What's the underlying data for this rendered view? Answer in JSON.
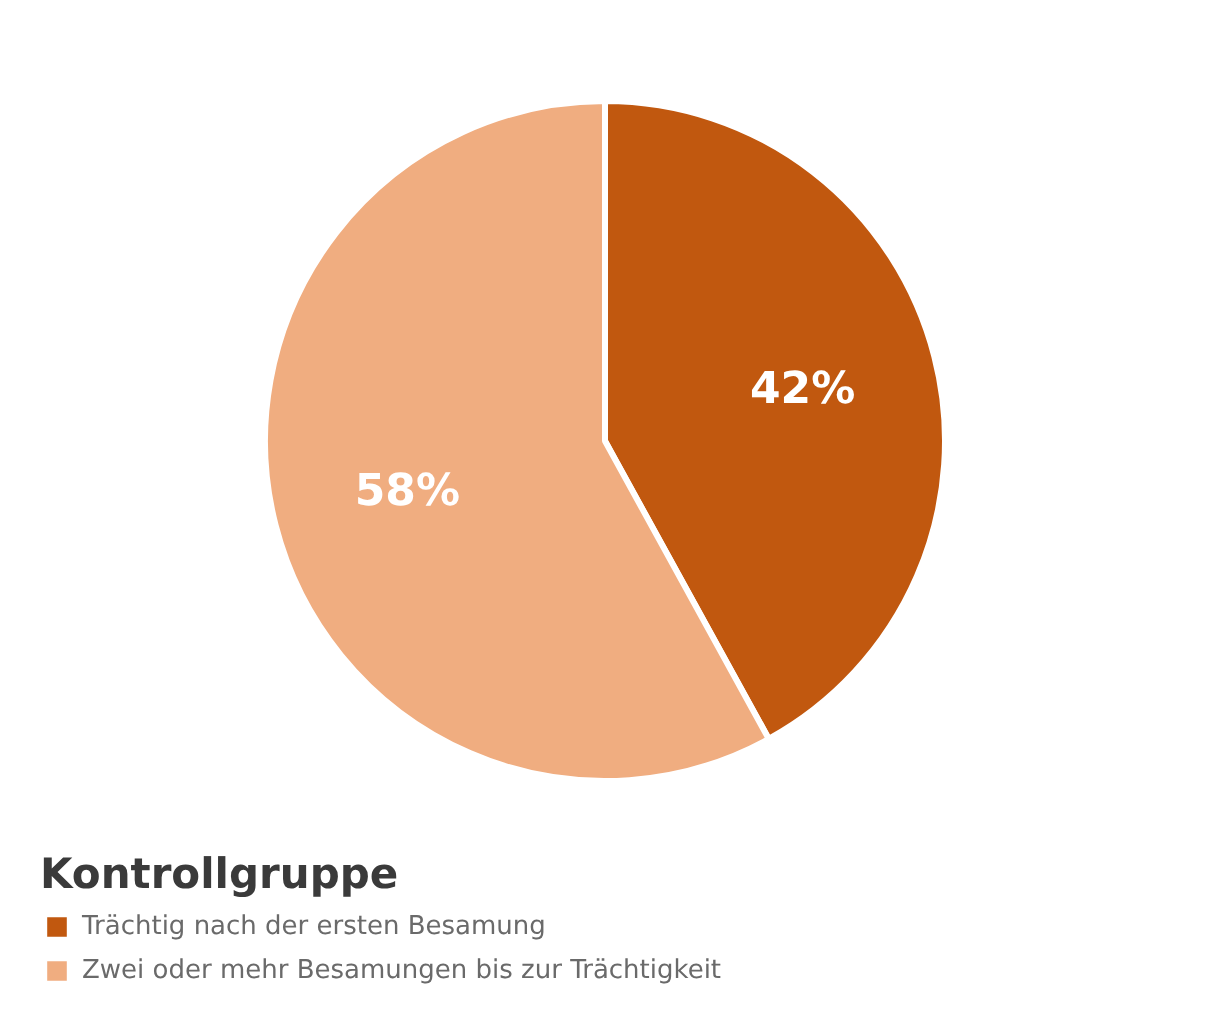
{
  "chart_data": {
    "type": "pie",
    "legend_title": "Kontrollgruppe",
    "categories": [
      "Trächtig nach der ersten Besamung",
      "Zwei oder mehr Besamungen bis zur Trächtigkeit"
    ],
    "values": [
      42,
      58
    ],
    "colors": [
      "#c1580f",
      "#f0ad80"
    ],
    "value_labels": [
      "42%",
      "58%"
    ],
    "legend": "bottom left"
  }
}
